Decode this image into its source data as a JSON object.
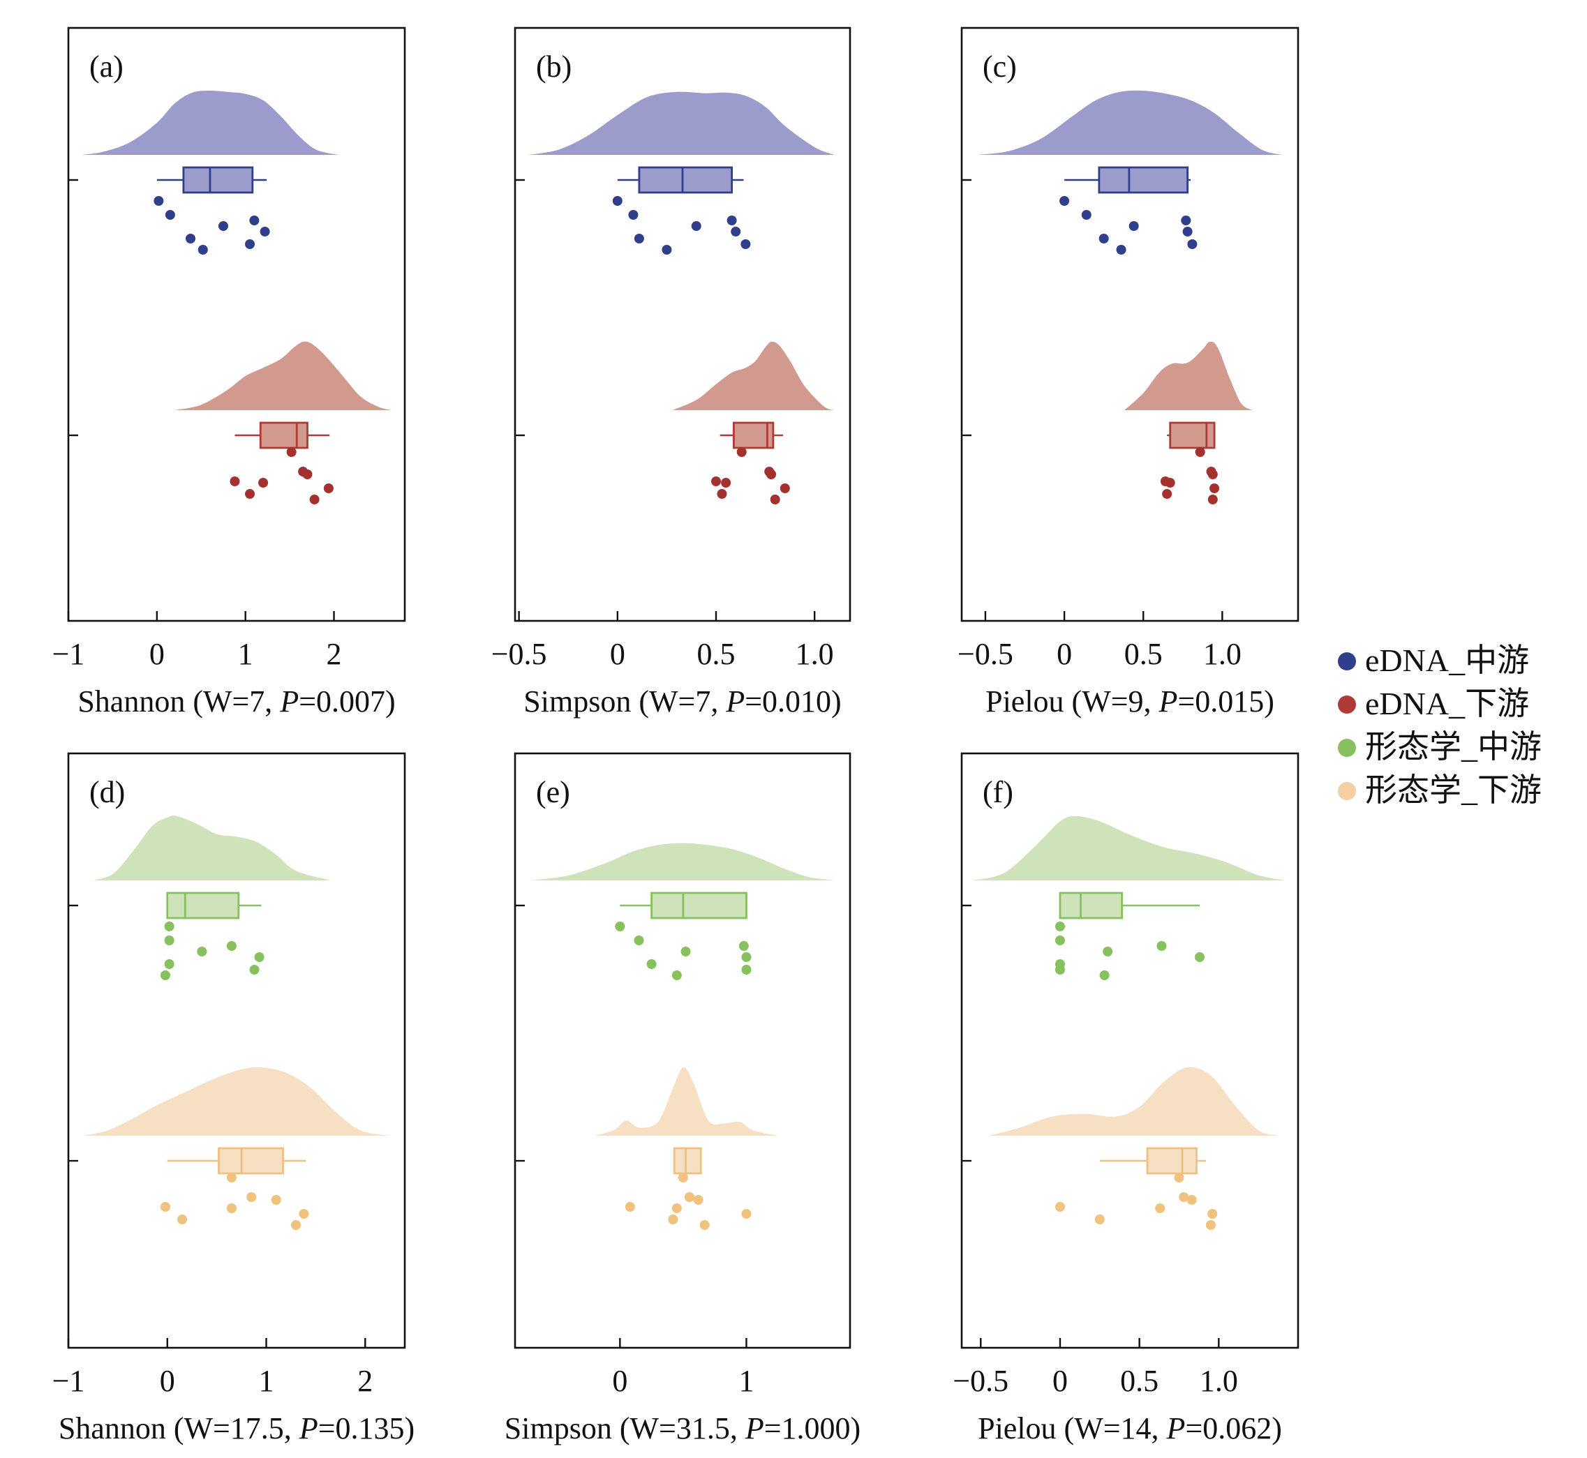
{
  "groups": {
    "eDNA_mid": {
      "name": "eDNA_中游",
      "fill": "#9b9bcc",
      "dot": "#2f3f8c",
      "box": "#2f3f8c"
    },
    "eDNA_low": {
      "name": "eDNA_下游",
      "fill": "#d29a8e",
      "dot": "#a5312e",
      "box": "#b03a35"
    },
    "morph_mid": {
      "name": "形态学_中游",
      "fill": "#cfe3ba",
      "dot": "#86c15e",
      "box": "#86c15e"
    },
    "morph_low": {
      "name": "形态学_下游",
      "fill": "#f7dfc3",
      "dot": "#f0c27d",
      "box": "#efc180"
    }
  },
  "legend": {
    "items": [
      {
        "label": "eDNA_中游",
        "color": "#2f3f8c"
      },
      {
        "label": "eDNA_下游",
        "color": "#b03a35"
      },
      {
        "label": "形态学_中游",
        "color": "#86c15e"
      },
      {
        "label": "形态学_下游",
        "color": "#f4cfa4"
      }
    ]
  },
  "chart_data": [
    {
      "id": "a",
      "type": "raincloud",
      "panel_label": "(a)",
      "xlabel": "Shannon (W=7, P=0.007)",
      "xlabel_parts": {
        "pre": "Shannon (W=7, ",
        "p": "P",
        "post": "=0.007)"
      },
      "xlim": [
        -1.0,
        2.8
      ],
      "xticks": [
        -1,
        0,
        1,
        2
      ],
      "tick_labels": [
        "−1",
        "0",
        "1",
        "2"
      ],
      "series": [
        {
          "group": "eDNA_mid",
          "box": {
            "min": 0.0,
            "q1": 0.3,
            "median": 0.6,
            "q3": 1.08,
            "max": 1.24
          },
          "points": [
            0.02,
            0.15,
            0.38,
            0.52,
            0.75,
            1.1,
            1.22,
            1.05
          ],
          "density": {
            "x": [
              -0.85,
              -0.6,
              -0.3,
              0.0,
              0.2,
              0.4,
              0.6,
              0.8,
              1.0,
              1.2,
              1.4,
              1.6,
              1.8,
              2.05
            ],
            "y": [
              0.0,
              0.05,
              0.2,
              0.5,
              0.8,
              0.97,
              1.0,
              0.98,
              0.95,
              0.85,
              0.6,
              0.3,
              0.08,
              0.0
            ]
          }
        },
        {
          "group": "eDNA_low",
          "box": {
            "min": 0.88,
            "q1": 1.17,
            "median": 1.58,
            "q3": 1.7,
            "max": 1.95
          },
          "points": [
            0.88,
            1.05,
            1.2,
            1.52,
            1.65,
            1.7,
            1.78,
            1.94
          ],
          "density": {
            "x": [
              0.2,
              0.5,
              0.8,
              1.0,
              1.2,
              1.4,
              1.55,
              1.65,
              1.75,
              1.9,
              2.1,
              2.3,
              2.5,
              2.65
            ],
            "y": [
              0.0,
              0.08,
              0.3,
              0.5,
              0.62,
              0.75,
              0.92,
              1.0,
              0.97,
              0.8,
              0.5,
              0.2,
              0.05,
              0.0
            ]
          }
        }
      ]
    },
    {
      "id": "b",
      "type": "raincloud",
      "panel_label": "(b)",
      "xlabel": "Simpson (W=7, P=0.010)",
      "xlabel_parts": {
        "pre": "Simpson (W=7, ",
        "p": "P",
        "post": "=0.010)"
      },
      "xlim": [
        -0.52,
        1.18
      ],
      "xticks": [
        -0.5,
        0.0,
        0.5,
        1.0
      ],
      "tick_labels": [
        "−0.5",
        "0",
        "0.5",
        "1.0"
      ],
      "series": [
        {
          "group": "eDNA_mid",
          "box": {
            "min": 0.0,
            "q1": 0.11,
            "median": 0.33,
            "q3": 0.58,
            "max": 0.64
          },
          "points": [
            0.0,
            0.08,
            0.11,
            0.25,
            0.4,
            0.58,
            0.6,
            0.65
          ],
          "density": {
            "x": [
              -0.45,
              -0.3,
              -0.15,
              0.0,
              0.15,
              0.3,
              0.45,
              0.55,
              0.65,
              0.75,
              0.85,
              1.0,
              1.1
            ],
            "y": [
              0.0,
              0.08,
              0.3,
              0.62,
              0.9,
              0.98,
              0.96,
              0.97,
              0.92,
              0.75,
              0.45,
              0.12,
              0.0
            ]
          }
        },
        {
          "group": "eDNA_low",
          "box": {
            "min": 0.52,
            "q1": 0.59,
            "median": 0.76,
            "q3": 0.79,
            "max": 0.84
          },
          "points": [
            0.5,
            0.53,
            0.55,
            0.63,
            0.77,
            0.78,
            0.8,
            0.85
          ],
          "density": {
            "x": [
              0.28,
              0.4,
              0.5,
              0.58,
              0.65,
              0.7,
              0.75,
              0.78,
              0.82,
              0.88,
              0.95,
              1.05,
              1.1
            ],
            "y": [
              0.0,
              0.15,
              0.38,
              0.55,
              0.62,
              0.72,
              0.92,
              1.0,
              0.95,
              0.7,
              0.35,
              0.05,
              0.0
            ]
          }
        }
      ]
    },
    {
      "id": "c",
      "type": "raincloud",
      "panel_label": "(c)",
      "xlabel": "Pielou (W=9, P=0.015)",
      "xlabel_parts": {
        "pre": "Pielou (W=9, ",
        "p": "P",
        "post": "=0.015)"
      },
      "xlim": [
        -0.65,
        1.48
      ],
      "xticks": [
        -0.5,
        0.0,
        0.5,
        1.0
      ],
      "tick_labels": [
        "−0.5",
        "0",
        "0.5",
        "1.0"
      ],
      "series": [
        {
          "group": "eDNA_mid",
          "box": {
            "min": 0.0,
            "q1": 0.22,
            "median": 0.41,
            "q3": 0.78,
            "max": 0.8
          },
          "points": [
            0.0,
            0.14,
            0.25,
            0.36,
            0.44,
            0.77,
            0.78,
            0.81
          ],
          "density": {
            "x": [
              -0.55,
              -0.35,
              -0.15,
              0.05,
              0.2,
              0.35,
              0.5,
              0.65,
              0.8,
              0.95,
              1.1,
              1.25,
              1.38
            ],
            "y": [
              0.0,
              0.06,
              0.25,
              0.6,
              0.85,
              0.98,
              1.0,
              0.95,
              0.85,
              0.65,
              0.35,
              0.08,
              0.0
            ]
          }
        },
        {
          "group": "eDNA_low",
          "box": {
            "min": 0.65,
            "q1": 0.67,
            "median": 0.9,
            "q3": 0.95,
            "max": 0.95
          },
          "points": [
            0.64,
            0.65,
            0.67,
            0.86,
            0.93,
            0.94,
            0.94,
            0.95
          ],
          "density": {
            "x": [
              0.38,
              0.5,
              0.6,
              0.68,
              0.75,
              0.8,
              0.88,
              0.92,
              0.97,
              1.05,
              1.12,
              1.19
            ],
            "y": [
              0.0,
              0.25,
              0.55,
              0.68,
              0.68,
              0.72,
              0.9,
              1.0,
              0.92,
              0.45,
              0.1,
              0.0
            ]
          }
        }
      ]
    },
    {
      "id": "d",
      "type": "raincloud",
      "panel_label": "(d)",
      "xlabel": "Shannon (W=17.5, P=0.135)",
      "xlabel_parts": {
        "pre": "Shannon (W=17.5, ",
        "p": "P",
        "post": "=0.135)"
      },
      "xlim": [
        -1.0,
        2.4
      ],
      "xticks": [
        -1,
        0,
        1,
        2
      ],
      "tick_labels": [
        "−1",
        "0",
        "1",
        "2"
      ],
      "series": [
        {
          "group": "morph_mid",
          "box": {
            "min": 0.0,
            "q1": 0.0,
            "median": 0.18,
            "q3": 0.72,
            "max": 0.95
          },
          "points": [
            0.02,
            0.02,
            0.02,
            -0.02,
            0.35,
            0.65,
            0.93,
            0.88
          ],
          "density": {
            "x": [
              -0.75,
              -0.55,
              -0.35,
              -0.15,
              0.0,
              0.1,
              0.3,
              0.5,
              0.7,
              0.9,
              1.1,
              1.3,
              1.65
            ],
            "y": [
              0.0,
              0.1,
              0.45,
              0.85,
              0.98,
              1.0,
              0.88,
              0.72,
              0.68,
              0.6,
              0.4,
              0.15,
              0.0
            ]
          }
        },
        {
          "group": "morph_low",
          "box": {
            "min": 0.0,
            "q1": 0.52,
            "median": 0.75,
            "q3": 1.17,
            "max": 1.4
          },
          "points": [
            -0.02,
            0.15,
            0.65,
            0.65,
            0.85,
            1.1,
            1.3,
            1.38
          ],
          "density": {
            "x": [
              -0.85,
              -0.6,
              -0.35,
              -0.1,
              0.2,
              0.5,
              0.75,
              0.95,
              1.2,
              1.45,
              1.7,
              1.95,
              2.25
            ],
            "y": [
              0.0,
              0.08,
              0.25,
              0.45,
              0.65,
              0.85,
              0.97,
              1.0,
              0.92,
              0.7,
              0.35,
              0.08,
              0.0
            ]
          }
        }
      ]
    },
    {
      "id": "e",
      "type": "raincloud",
      "panel_label": "(e)",
      "xlabel": "Simpson (W=31.5, P=1.000)",
      "xlabel_parts": {
        "pre": "Simpson (W=31.5, ",
        "p": "P",
        "post": "=1.000)"
      },
      "xlim": [
        -0.83,
        1.82
      ],
      "xticks": [
        0,
        1
      ],
      "tick_labels": [
        "0",
        "1"
      ],
      "series": [
        {
          "group": "morph_mid",
          "box": {
            "min": 0.0,
            "q1": 0.25,
            "median": 0.5,
            "q3": 1.0,
            "max": 1.0
          },
          "points": [
            0.0,
            0.15,
            0.25,
            0.45,
            0.52,
            0.98,
            1.0,
            1.0
          ],
          "density": {
            "x": [
              -0.7,
              -0.4,
              -0.1,
              0.1,
              0.3,
              0.5,
              0.7,
              0.9,
              1.1,
              1.3,
              1.5,
              1.7
            ],
            "y": [
              0.0,
              0.08,
              0.28,
              0.45,
              0.55,
              0.58,
              0.55,
              0.48,
              0.35,
              0.18,
              0.05,
              0.0
            ]
          }
        },
        {
          "group": "morph_low",
          "box": {
            "min": 0.43,
            "q1": 0.43,
            "median": 0.52,
            "q3": 0.64,
            "max": 0.64
          },
          "points": [
            0.08,
            0.42,
            0.45,
            0.5,
            0.55,
            0.62,
            0.67,
            1.0
          ],
          "density": {
            "x": [
              -0.2,
              -0.05,
              0.05,
              0.15,
              0.3,
              0.42,
              0.5,
              0.58,
              0.7,
              0.82,
              0.95,
              1.05,
              1.25
            ],
            "y": [
              0.0,
              0.08,
              0.22,
              0.12,
              0.2,
              0.7,
              1.0,
              0.78,
              0.22,
              0.18,
              0.2,
              0.08,
              0.0
            ]
          }
        }
      ]
    },
    {
      "id": "f",
      "type": "raincloud",
      "panel_label": "(f)",
      "xlabel": "Pielou (W=14, P=0.062)",
      "xlabel_parts": {
        "pre": "Pielou (W=14, ",
        "p": "P",
        "post": "=0.062)"
      },
      "xlim": [
        -0.62,
        1.5
      ],
      "xticks": [
        -0.5,
        0.0,
        0.5,
        1.0
      ],
      "tick_labels": [
        "−0.5",
        "0",
        "0.5",
        "1.0"
      ],
      "series": [
        {
          "group": "morph_mid",
          "box": {
            "min": 0.0,
            "q1": 0.0,
            "median": 0.13,
            "q3": 0.39,
            "max": 0.88
          },
          "points": [
            0.0,
            0.0,
            0.0,
            0.28,
            0.3,
            0.64,
            0.88,
            0.0
          ],
          "density": {
            "x": [
              -0.55,
              -0.35,
              -0.15,
              0.0,
              0.1,
              0.25,
              0.45,
              0.65,
              0.85,
              1.05,
              1.25,
              1.42
            ],
            "y": [
              0.0,
              0.12,
              0.55,
              0.92,
              1.0,
              0.92,
              0.7,
              0.52,
              0.42,
              0.28,
              0.08,
              0.0
            ]
          }
        },
        {
          "group": "morph_low",
          "box": {
            "min": 0.25,
            "q1": 0.55,
            "median": 0.77,
            "q3": 0.86,
            "max": 0.92
          },
          "points": [
            0.0,
            0.25,
            0.63,
            0.75,
            0.78,
            0.83,
            0.95,
            0.96
          ],
          "density": {
            "x": [
              -0.45,
              -0.25,
              -0.05,
              0.15,
              0.35,
              0.5,
              0.65,
              0.8,
              0.95,
              1.1,
              1.25,
              1.38
            ],
            "y": [
              0.0,
              0.12,
              0.28,
              0.32,
              0.28,
              0.42,
              0.78,
              1.0,
              0.88,
              0.45,
              0.08,
              0.0
            ]
          }
        }
      ]
    }
  ]
}
